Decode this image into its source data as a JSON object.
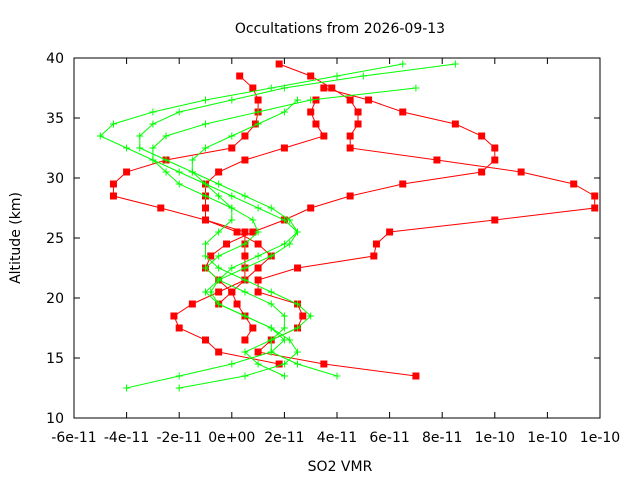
{
  "chart_data": {
    "type": "line",
    "title": "Occultations from 2026-09-13",
    "xlabel": "SO2 VMR",
    "ylabel": "Altitude (km)",
    "xlim": [
      -6e-11,
      1.4e-10
    ],
    "ylim": [
      10,
      40
    ],
    "x_ticks": [
      {
        "v": -6e-11,
        "label": "-6e-11"
      },
      {
        "v": -4e-11,
        "label": "-4e-11"
      },
      {
        "v": -2e-11,
        "label": "-2e-11"
      },
      {
        "v": 0,
        "label": "0e+00"
      },
      {
        "v": 2e-11,
        "label": "2e-11"
      },
      {
        "v": 4e-11,
        "label": "4e-11"
      },
      {
        "v": 6e-11,
        "label": "6e-11"
      },
      {
        "v": 8e-11,
        "label": "8e-11"
      },
      {
        "v": 1e-10,
        "label": "1e-10"
      },
      {
        "v": 1.2e-10,
        "label": "1e-10"
      },
      {
        "v": 1.4e-10,
        "label": "1e-10"
      }
    ],
    "y_ticks": [
      {
        "v": 10,
        "label": "10"
      },
      {
        "v": 15,
        "label": "15"
      },
      {
        "v": 20,
        "label": "20"
      },
      {
        "v": 25,
        "label": "25"
      },
      {
        "v": 30,
        "label": "30"
      },
      {
        "v": 35,
        "label": "35"
      },
      {
        "v": 40,
        "label": "40"
      }
    ],
    "grid": false,
    "legend": "none",
    "series": [
      {
        "color": "#ff0000",
        "marker": "square",
        "points": [
          [
            1.8e-11,
            39.5
          ],
          [
            3e-11,
            38.5
          ],
          [
            3.8e-11,
            37.5
          ],
          [
            4.5e-11,
            36.5
          ],
          [
            4.8e-11,
            35.5
          ],
          [
            4.8e-11,
            34.5
          ],
          [
            4.5e-11,
            33.5
          ],
          [
            4.5e-11,
            32.5
          ],
          [
            7.8e-11,
            31.5
          ],
          [
            1.1e-10,
            30.5
          ],
          [
            1.3e-10,
            29.5
          ],
          [
            1.38e-10,
            28.5
          ],
          [
            1.38e-10,
            27.5
          ],
          [
            1e-10,
            26.5
          ],
          [
            6e-11,
            25.5
          ],
          [
            5.5e-11,
            24.5
          ],
          [
            5.4e-11,
            23.5
          ],
          [
            2.5e-11,
            22.5
          ],
          [
            1e-11,
            21.5
          ],
          [
            1e-11,
            20.5
          ],
          [
            2.5e-11,
            19.5
          ],
          [
            2.7e-11,
            18.5
          ],
          [
            2.5e-11,
            17.5
          ],
          [
            1.5e-11,
            16.5
          ],
          [
            1e-11,
            15.5
          ],
          [
            3.5e-11,
            14.5
          ],
          [
            7e-11,
            13.5
          ]
        ]
      },
      {
        "color": "#ff0000",
        "marker": "square",
        "points": [
          [
            3e-12,
            38.5
          ],
          [
            8e-12,
            37.5
          ],
          [
            1e-11,
            36.5
          ],
          [
            1e-11,
            35.5
          ],
          [
            9e-12,
            34.5
          ],
          [
            5e-12,
            33.5
          ],
          [
            0.0,
            32.5
          ],
          [
            -2.5e-11,
            31.5
          ],
          [
            -4e-11,
            30.5
          ],
          [
            -4.5e-11,
            29.5
          ],
          [
            -4.5e-11,
            28.5
          ],
          [
            -2.7e-11,
            27.5
          ],
          [
            -1e-11,
            26.5
          ],
          [
            5e-12,
            25.5
          ],
          [
            5e-12,
            24.5
          ],
          [
            5e-12,
            23.5
          ],
          [
            5e-12,
            22.5
          ],
          [
            5e-12,
            21.5
          ],
          [
            -5e-12,
            20.5
          ],
          [
            -1.5e-11,
            19.5
          ],
          [
            -2.2e-11,
            18.5
          ],
          [
            -2e-11,
            17.5
          ],
          [
            -1e-11,
            16.5
          ],
          [
            -5e-12,
            15.5
          ],
          [
            1.8e-11,
            14.5
          ]
        ]
      },
      {
        "color": "#ff0000",
        "marker": "square",
        "points": [
          [
            3.5e-11,
            37.5
          ],
          [
            5.2e-11,
            36.5
          ],
          [
            6.5e-11,
            35.5
          ],
          [
            8.5e-11,
            34.5
          ],
          [
            9.5e-11,
            33.5
          ],
          [
            1e-10,
            32.5
          ],
          [
            1e-10,
            31.5
          ],
          [
            9.5e-11,
            30.5
          ],
          [
            6.5e-11,
            29.5
          ],
          [
            4.5e-11,
            28.5
          ],
          [
            3e-11,
            27.5
          ],
          [
            2e-11,
            26.5
          ],
          [
            8e-12,
            25.5
          ],
          [
            -2e-12,
            24.5
          ],
          [
            -8e-12,
            23.5
          ],
          [
            -1e-11,
            22.5
          ],
          [
            -5e-12,
            21.5
          ],
          [
            0.0,
            20.5
          ],
          [
            2e-12,
            19.5
          ],
          [
            5e-12,
            18.5
          ],
          [
            8e-12,
            17.5
          ],
          [
            5e-12,
            16.5
          ]
        ]
      },
      {
        "color": "#ff0000",
        "marker": "square",
        "points": [
          [
            3.2e-11,
            36.5
          ],
          [
            3e-11,
            35.5
          ],
          [
            3.2e-11,
            34.5
          ],
          [
            3.5e-11,
            33.5
          ],
          [
            2e-11,
            32.5
          ],
          [
            5e-12,
            31.5
          ],
          [
            -5e-12,
            30.5
          ],
          [
            -1e-11,
            29.5
          ],
          [
            -1e-11,
            28.5
          ],
          [
            -1e-11,
            27.5
          ],
          [
            -1e-11,
            26.5
          ],
          [
            2e-12,
            25.5
          ],
          [
            1e-11,
            24.5
          ],
          [
            1.5e-11,
            23.5
          ],
          [
            1e-11,
            22.5
          ],
          [
            5e-12,
            21.5
          ],
          [
            0.0,
            20.5
          ],
          [
            -5e-12,
            19.5
          ]
        ]
      },
      {
        "color": "#00ff00",
        "marker": "plus",
        "points": [
          [
            6.5e-11,
            39.5
          ],
          [
            4e-11,
            38.5
          ],
          [
            1.5e-11,
            37.5
          ],
          [
            -1e-11,
            36.5
          ],
          [
            -3e-11,
            35.5
          ],
          [
            -4.5e-11,
            34.5
          ],
          [
            -5e-11,
            33.5
          ],
          [
            -4e-11,
            32.5
          ],
          [
            -3e-11,
            31.5
          ],
          [
            -2e-11,
            30.5
          ],
          [
            -1e-11,
            29.5
          ],
          [
            0.0,
            28.5
          ],
          [
            1e-11,
            27.5
          ],
          [
            2e-11,
            26.5
          ],
          [
            2.5e-11,
            25.5
          ],
          [
            2e-11,
            24.5
          ],
          [
            1e-11,
            23.5
          ],
          [
            0.0,
            22.5
          ],
          [
            -5e-12,
            21.5
          ],
          [
            -8e-12,
            20.5
          ],
          [
            -5e-12,
            19.5
          ],
          [
            5e-12,
            18.5
          ],
          [
            1.5e-11,
            17.5
          ],
          [
            2e-11,
            16.5
          ],
          [
            1.5e-11,
            15.5
          ],
          [
            0.0,
            14.5
          ],
          [
            -2e-11,
            13.5
          ],
          [
            -4e-11,
            12.5
          ]
        ]
      },
      {
        "color": "#00ff00",
        "marker": "plus",
        "points": [
          [
            8.5e-11,
            39.5
          ],
          [
            5e-11,
            38.5
          ],
          [
            2e-11,
            37.5
          ],
          [
            0.0,
            36.5
          ],
          [
            -2e-11,
            35.5
          ],
          [
            -3e-11,
            34.5
          ],
          [
            -3.5e-11,
            33.5
          ],
          [
            -3.5e-11,
            32.5
          ],
          [
            -2.5e-11,
            31.5
          ],
          [
            -1.5e-11,
            30.5
          ],
          [
            -5e-12,
            29.5
          ],
          [
            5e-12,
            28.5
          ],
          [
            1.5e-11,
            27.5
          ],
          [
            2.2e-11,
            26.5
          ],
          [
            2.5e-11,
            25.5
          ],
          [
            2.2e-11,
            24.5
          ],
          [
            1.5e-11,
            23.5
          ],
          [
            5e-12,
            22.5
          ],
          [
            -5e-12,
            21.5
          ],
          [
            -1e-11,
            20.5
          ],
          [
            -5e-12,
            19.5
          ],
          [
            5e-12,
            18.5
          ],
          [
            1.5e-11,
            17.5
          ],
          [
            2.2e-11,
            16.5
          ],
          [
            2.5e-11,
            15.5
          ],
          [
            2e-11,
            14.5
          ],
          [
            5e-12,
            13.5
          ],
          [
            -2e-11,
            12.5
          ]
        ]
      },
      {
        "color": "#00ff00",
        "marker": "plus",
        "points": [
          [
            7e-11,
            37.5
          ],
          [
            3e-11,
            36.5
          ],
          [
            1e-11,
            35.5
          ],
          [
            -1e-11,
            34.5
          ],
          [
            -2.5e-11,
            33.5
          ],
          [
            -3e-11,
            32.5
          ],
          [
            -3e-11,
            31.5
          ],
          [
            -2.5e-11,
            30.5
          ],
          [
            -2e-11,
            29.5
          ],
          [
            -1e-11,
            28.5
          ],
          [
            0.0,
            27.5
          ],
          [
            8e-12,
            26.5
          ],
          [
            1e-11,
            25.5
          ],
          [
            5e-12,
            24.5
          ],
          [
            -5e-12,
            23.5
          ],
          [
            -1e-11,
            22.5
          ],
          [
            -5e-12,
            21.5
          ],
          [
            5e-12,
            20.5
          ],
          [
            1.5e-11,
            19.5
          ],
          [
            2e-11,
            18.5
          ],
          [
            2e-11,
            17.5
          ],
          [
            1.5e-11,
            16.5
          ],
          [
            1.5e-11,
            15.5
          ],
          [
            2.5e-11,
            14.5
          ],
          [
            4e-11,
            13.5
          ]
        ]
      },
      {
        "color": "#00ff00",
        "marker": "plus",
        "points": [
          [
            2.5e-11,
            36.5
          ],
          [
            2e-11,
            35.5
          ],
          [
            1e-11,
            34.5
          ],
          [
            0.0,
            33.5
          ],
          [
            -1e-11,
            32.5
          ],
          [
            -1.5e-11,
            31.5
          ],
          [
            -1.5e-11,
            30.5
          ],
          [
            -1e-11,
            29.5
          ],
          [
            -5e-12,
            28.5
          ],
          [
            0.0,
            27.5
          ],
          [
            0.0,
            26.5
          ],
          [
            -5e-12,
            25.5
          ],
          [
            -1e-11,
            24.5
          ],
          [
            -1e-11,
            23.5
          ],
          [
            -5e-12,
            22.5
          ],
          [
            5e-12,
            21.5
          ],
          [
            1.5e-11,
            20.5
          ],
          [
            2.5e-11,
            19.5
          ],
          [
            3e-11,
            18.5
          ],
          [
            2.5e-11,
            17.5
          ],
          [
            1.5e-11,
            16.5
          ],
          [
            5e-12,
            15.5
          ],
          [
            1e-11,
            14.5
          ],
          [
            2e-11,
            13.5
          ]
        ]
      }
    ]
  }
}
